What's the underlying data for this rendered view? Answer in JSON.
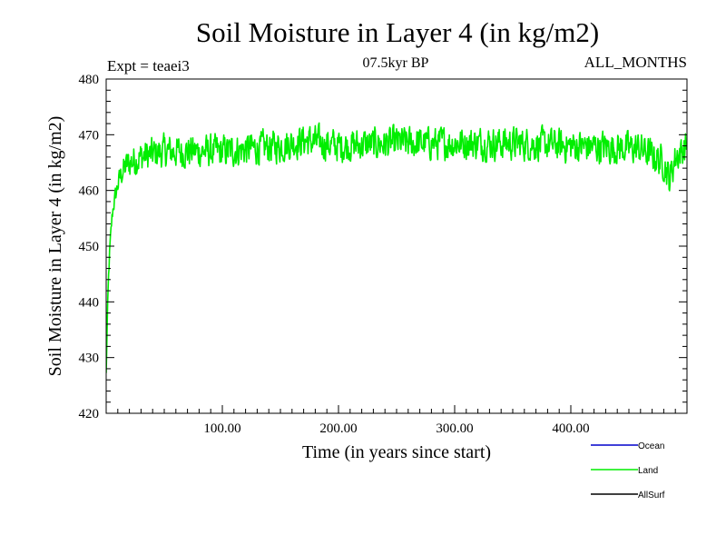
{
  "chart_data": {
    "type": "line",
    "title": "Soil Moisture in Layer 4 (in kg/m2)",
    "subtitle_left": "Expt = teaei3",
    "subtitle_center": "07.5kyr BP",
    "subtitle_right": "ALL_MONTHS",
    "xlabel": "Time (in years since start)",
    "ylabel": "Soil Moisture in Layer 4 (in kg/m2)",
    "xlim": [
      0,
      500
    ],
    "ylim": [
      420,
      480
    ],
    "x_ticks": [
      {
        "value": 100,
        "label": "100.00"
      },
      {
        "value": 200,
        "label": "200.00"
      },
      {
        "value": 300,
        "label": "300.00"
      },
      {
        "value": 400,
        "label": "400.00"
      }
    ],
    "y_ticks": [
      {
        "value": 420,
        "label": "420"
      },
      {
        "value": 430,
        "label": "430"
      },
      {
        "value": 440,
        "label": "440"
      },
      {
        "value": 450,
        "label": "450"
      },
      {
        "value": 460,
        "label": "460"
      },
      {
        "value": 470,
        "label": "470"
      },
      {
        "value": 480,
        "label": "480"
      }
    ],
    "legend": [
      {
        "name": "Ocean",
        "color": "#0000cc"
      },
      {
        "name": "Land",
        "color": "#00ee00"
      },
      {
        "name": "AllSurf",
        "color": "#000000"
      }
    ],
    "series": [
      {
        "name": "Land",
        "color": "#00ee00",
        "anchors": [
          [
            0,
            427
          ],
          [
            1,
            437
          ],
          [
            2,
            444
          ],
          [
            3,
            449
          ],
          [
            4,
            452
          ],
          [
            5,
            455
          ],
          [
            6,
            457
          ],
          [
            8,
            459
          ],
          [
            10,
            461
          ],
          [
            13,
            463
          ],
          [
            16,
            464
          ],
          [
            20,
            465
          ],
          [
            30,
            466
          ],
          [
            50,
            467
          ],
          [
            100,
            467
          ],
          [
            150,
            468
          ],
          [
            170,
            469
          ],
          [
            200,
            468
          ],
          [
            250,
            468.5
          ],
          [
            300,
            468.5
          ],
          [
            350,
            468.5
          ],
          [
            400,
            468
          ],
          [
            460,
            467.5
          ],
          [
            480,
            465
          ],
          [
            485,
            462
          ],
          [
            490,
            466
          ],
          [
            500,
            468
          ]
        ],
        "noise_amplitude": 2.6,
        "n_points": 1200
      }
    ]
  }
}
